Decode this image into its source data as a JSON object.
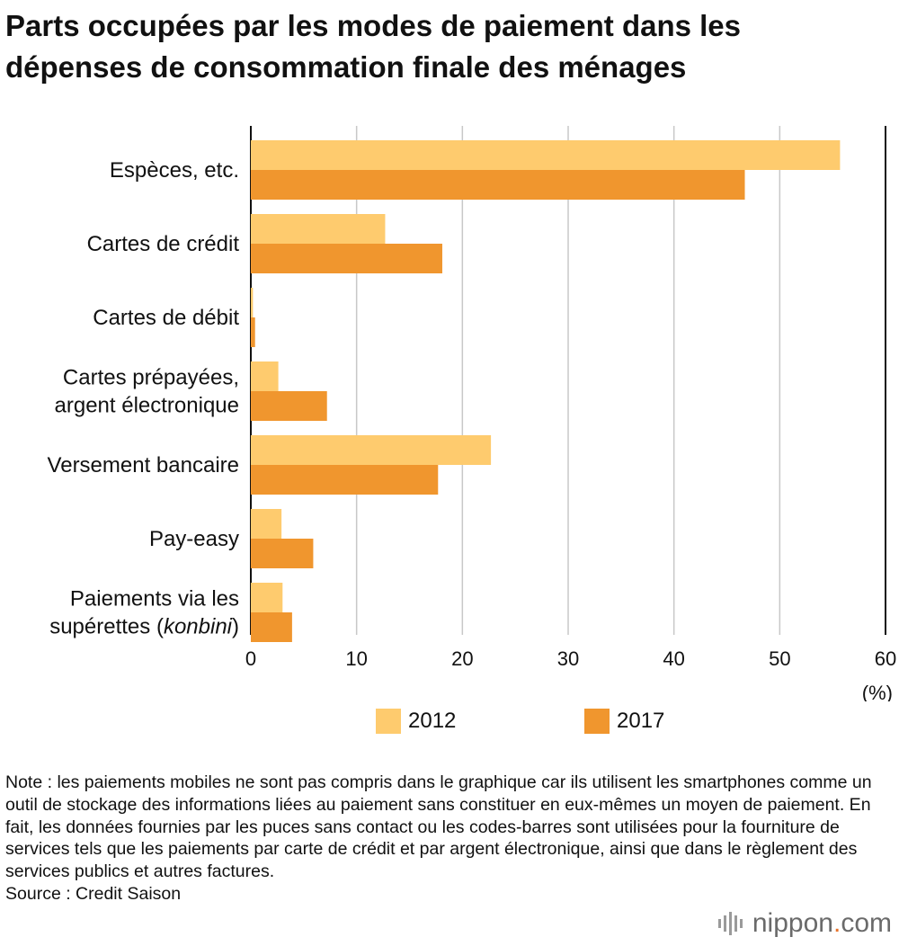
{
  "title": {
    "line1": "Parts occupées par les modes de paiement dans les",
    "line2": "dépenses de consommation finale des ménages"
  },
  "chart_data": {
    "type": "bar",
    "orientation": "horizontal",
    "categories": [
      [
        "Espèces, etc."
      ],
      [
        "Cartes de crédit"
      ],
      [
        "Cartes de débit"
      ],
      [
        "Cartes prépayées,",
        "argent électronique"
      ],
      [
        "Versement bancaire"
      ],
      [
        "Pay-easy"
      ],
      [
        "Paiements via les",
        "supérettes (konbini)"
      ]
    ],
    "series": [
      {
        "name": "2012",
        "color": "#fecb6e",
        "values": [
          55.7,
          12.7,
          0.2,
          2.6,
          22.7,
          2.9,
          3.0
        ]
      },
      {
        "name": "2017",
        "color": "#f0962e",
        "values": [
          46.7,
          18.1,
          0.4,
          7.2,
          17.7,
          5.9,
          3.9
        ]
      }
    ],
    "xlim": [
      0,
      60
    ],
    "ticks": [
      0,
      10,
      20,
      30,
      40,
      50,
      60
    ],
    "xlabel": "(%)",
    "grid": true
  },
  "legend": {
    "label_2012": "2012",
    "label_2017": "2017"
  },
  "note": {
    "text": "Note : les paiements mobiles ne sont pas compris dans le graphique car ils utilisent les smartphones comme un outil de stockage des informations liées au paiement sans constituer en eux-mêmes un moyen de paiement. En fait, les données fournies par les puces sans contact ou les codes-barres sont utilisées pour la fourniture de services tels que les paiements par carte de crédit et par argent électronique, ainsi que dans le règlement des services publics et autres factures.",
    "source": "Source : Credit Saison"
  },
  "logo": {
    "name": "nippon",
    "dot": ".",
    "domain": "com"
  }
}
